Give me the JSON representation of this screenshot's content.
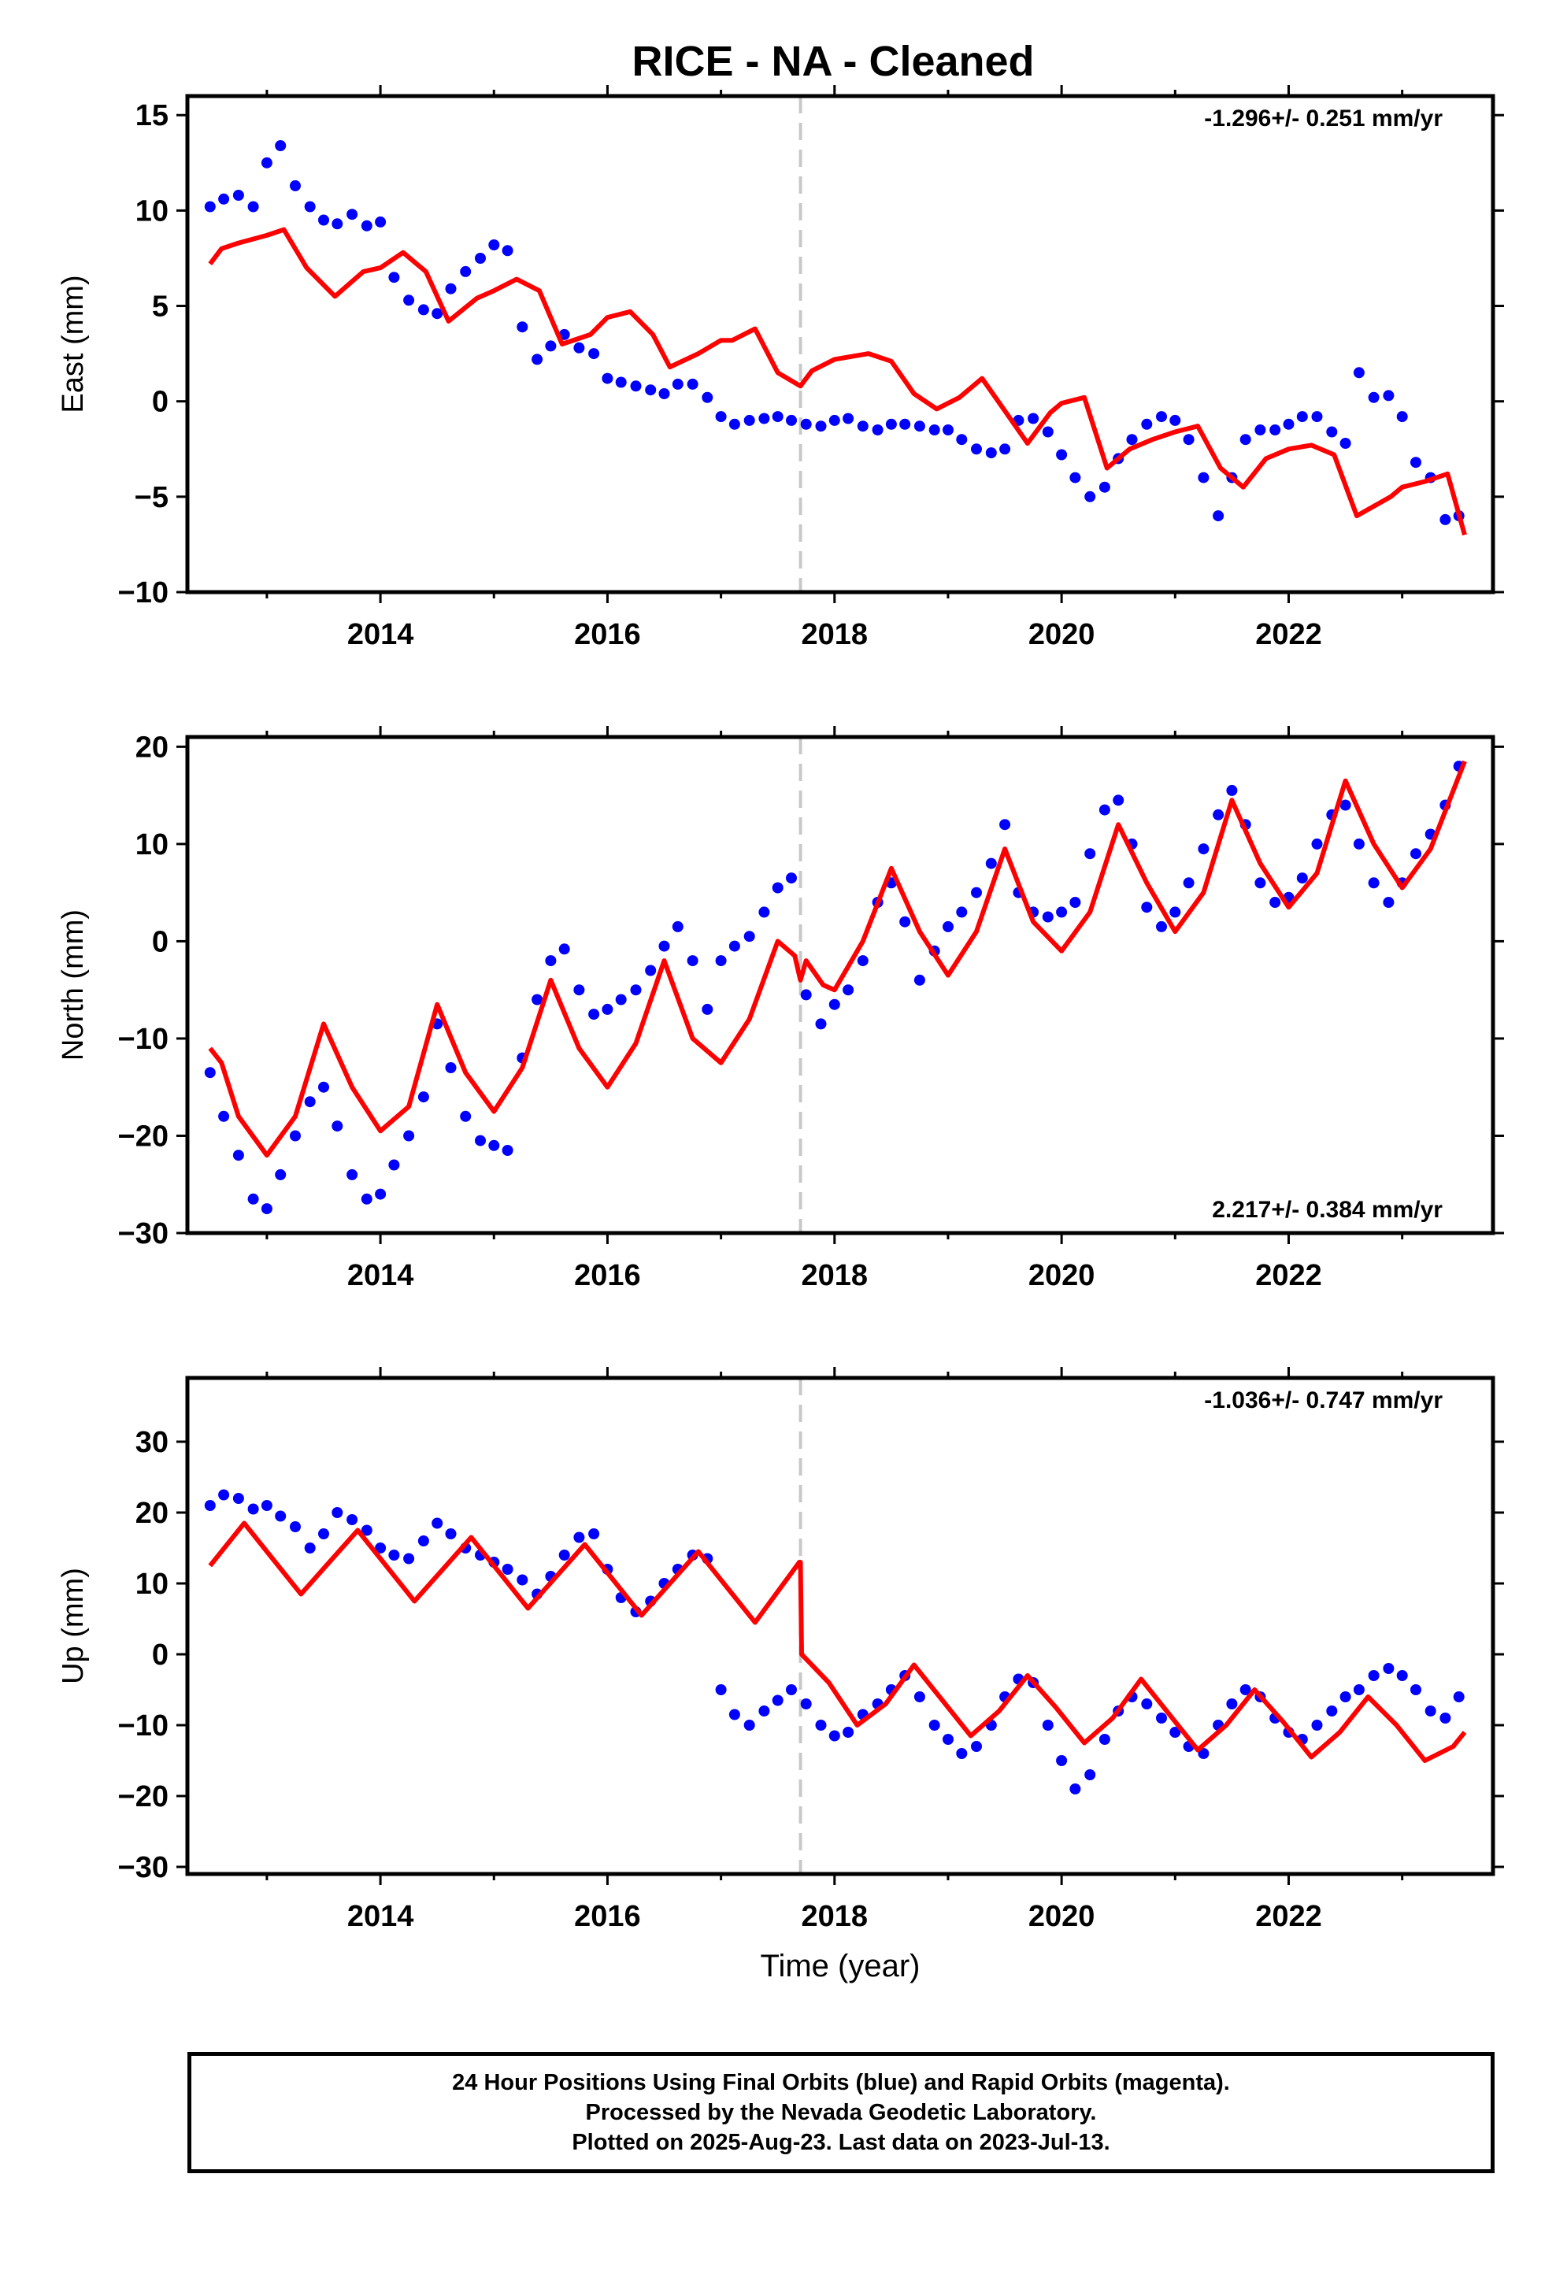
{
  "title": "RICE  - NA - Cleaned",
  "colors": {
    "data_points": "#0000ff",
    "model_line": "#ff0000",
    "offset_line": "#c8c8c8",
    "axes": "#000000",
    "background": "#ffffff"
  },
  "chart_data": [
    {
      "type": "scatter",
      "id": "east",
      "ylabel": "East (mm)",
      "xlabel": "",
      "rate_label": "-1.296+/- 0.251 mm/yr",
      "rate_label_position": "top-right",
      "xlim": [
        2012.3,
        2023.8
      ],
      "ylim": [
        -10,
        16
      ],
      "xticks": [
        2014,
        2016,
        2018,
        2020,
        2022
      ],
      "yticks": [
        -10,
        -5,
        0,
        5,
        10,
        15
      ],
      "offset_epoch": 2017.7,
      "data_series_name": "Final Orbits (blue)",
      "data_color": "#0000ff",
      "data_points": {
        "x": [
          2012.5,
          2012.62,
          2012.75,
          2012.88,
          2013.0,
          2013.12,
          2013.25,
          2013.38,
          2013.5,
          2013.62,
          2013.75,
          2013.88,
          2014.0,
          2014.12,
          2014.25,
          2014.38,
          2014.5,
          2014.62,
          2014.75,
          2014.88,
          2015.0,
          2015.12,
          2015.25,
          2015.38,
          2015.5,
          2015.62,
          2015.75,
          2015.88,
          2016.0,
          2016.12,
          2016.25,
          2016.38,
          2016.5,
          2016.62,
          2016.75,
          2016.88,
          2017.0,
          2017.12,
          2017.25,
          2017.38,
          2017.5,
          2017.62,
          2017.75,
          2017.88,
          2018.0,
          2018.12,
          2018.25,
          2018.38,
          2018.5,
          2018.62,
          2018.75,
          2018.88,
          2019.0,
          2019.12,
          2019.25,
          2019.38,
          2019.5,
          2019.62,
          2019.75,
          2019.88,
          2020.0,
          2020.12,
          2020.25,
          2020.38,
          2020.5,
          2020.62,
          2020.75,
          2020.88,
          2021.0,
          2021.12,
          2021.25,
          2021.38,
          2021.5,
          2021.62,
          2021.75,
          2021.88,
          2022.0,
          2022.12,
          2022.25,
          2022.38,
          2022.5,
          2022.62,
          2022.75,
          2022.88,
          2023.0,
          2023.12,
          2023.25,
          2023.38,
          2023.5
        ],
        "y": [
          10.2,
          10.6,
          10.8,
          10.2,
          12.5,
          13.4,
          11.3,
          10.2,
          9.5,
          9.3,
          9.8,
          9.2,
          9.4,
          6.5,
          5.3,
          4.8,
          4.6,
          5.9,
          6.8,
          7.5,
          8.2,
          7.9,
          3.9,
          2.2,
          2.9,
          3.5,
          2.8,
          2.5,
          1.2,
          1.0,
          0.8,
          0.6,
          0.4,
          0.9,
          0.9,
          0.2,
          -0.8,
          -1.2,
          -1.0,
          -0.9,
          -0.8,
          -1.0,
          -1.2,
          -1.3,
          -1.0,
          -0.9,
          -1.3,
          -1.5,
          -1.2,
          -1.2,
          -1.3,
          -1.5,
          -1.5,
          -2.0,
          -2.5,
          -2.7,
          -2.5,
          -1.0,
          -0.9,
          -1.6,
          -2.8,
          -4.0,
          -5.0,
          -4.5,
          -3.0,
          -2.0,
          -1.2,
          -0.8,
          -1.0,
          -2.0,
          -4.0,
          -6.0,
          -4.0,
          -2.0,
          -1.5,
          -1.5,
          -1.2,
          -0.8,
          -0.8,
          -1.6,
          -2.2,
          1.5,
          0.2,
          0.3,
          -0.8,
          -3.2,
          -4.0,
          -6.2,
          -6.0
        ]
      },
      "model_series_name": "Model fit (red)",
      "model_color": "#ff0000",
      "model_line": {
        "x": [
          2012.5,
          2012.6,
          2012.75,
          2013.0,
          2013.15,
          2013.35,
          2013.6,
          2013.85,
          2014.0,
          2014.2,
          2014.4,
          2014.6,
          2014.85,
          2015.0,
          2015.2,
          2015.4,
          2015.6,
          2015.85,
          2016.0,
          2016.2,
          2016.4,
          2016.55,
          2016.8,
          2017.0,
          2017.1,
          2017.3,
          2017.5,
          2017.7,
          2017.8,
          2018.0,
          2018.3,
          2018.5,
          2018.7,
          2018.9,
          2019.1,
          2019.3,
          2019.5,
          2019.7,
          2019.9,
          2020.0,
          2020.2,
          2020.4,
          2020.6,
          2020.8,
          2021.0,
          2021.2,
          2021.4,
          2021.6,
          2021.8,
          2022.0,
          2022.2,
          2022.4,
          2022.6,
          2022.9,
          2023.0,
          2023.2,
          2023.4,
          2023.55
        ],
        "y": [
          7.2,
          8.0,
          8.3,
          8.7,
          9.0,
          7.0,
          5.5,
          6.8,
          7.0,
          7.8,
          6.8,
          4.2,
          5.4,
          5.8,
          6.4,
          5.8,
          3.0,
          3.5,
          4.4,
          4.7,
          3.5,
          1.8,
          2.5,
          3.2,
          3.2,
          3.8,
          1.5,
          0.8,
          1.6,
          2.2,
          2.5,
          2.1,
          0.4,
          -0.4,
          0.2,
          1.2,
          -0.5,
          -2.2,
          -0.6,
          -0.1,
          0.2,
          -3.5,
          -2.5,
          -2.0,
          -1.6,
          -1.3,
          -3.5,
          -4.5,
          -3.0,
          -2.5,
          -2.3,
          -2.8,
          -6.0,
          -5.0,
          -4.5,
          -4.2,
          -3.8,
          -7.0
        ]
      }
    },
    {
      "type": "scatter",
      "id": "north",
      "ylabel": "North (mm)",
      "xlabel": "",
      "rate_label": "2.217+/- 0.384 mm/yr",
      "rate_label_position": "bottom-right",
      "xlim": [
        2012.3,
        2023.8
      ],
      "ylim": [
        -30,
        21
      ],
      "xticks": [
        2014,
        2016,
        2018,
        2020,
        2022
      ],
      "yticks": [
        -30,
        -20,
        -10,
        0,
        10,
        20
      ],
      "offset_epoch": 2017.7,
      "data_series_name": "Final Orbits (blue)",
      "data_color": "#0000ff",
      "data_points": {
        "x": [
          2012.5,
          2012.62,
          2012.75,
          2012.88,
          2013.0,
          2013.12,
          2013.25,
          2013.38,
          2013.5,
          2013.62,
          2013.75,
          2013.88,
          2014.0,
          2014.12,
          2014.25,
          2014.38,
          2014.5,
          2014.62,
          2014.75,
          2014.88,
          2015.0,
          2015.12,
          2015.25,
          2015.38,
          2015.5,
          2015.62,
          2015.75,
          2015.88,
          2016.0,
          2016.12,
          2016.25,
          2016.38,
          2016.5,
          2016.62,
          2016.75,
          2016.88,
          2017.0,
          2017.12,
          2017.25,
          2017.38,
          2017.5,
          2017.62,
          2017.75,
          2017.88,
          2018.0,
          2018.12,
          2018.25,
          2018.38,
          2018.5,
          2018.62,
          2018.75,
          2018.88,
          2019.0,
          2019.12,
          2019.25,
          2019.38,
          2019.5,
          2019.62,
          2019.75,
          2019.88,
          2020.0,
          2020.12,
          2020.25,
          2020.38,
          2020.5,
          2020.62,
          2020.75,
          2020.88,
          2021.0,
          2021.12,
          2021.25,
          2021.38,
          2021.5,
          2021.62,
          2021.75,
          2021.88,
          2022.0,
          2022.12,
          2022.25,
          2022.38,
          2022.5,
          2022.62,
          2022.75,
          2022.88,
          2023.0,
          2023.12,
          2023.25,
          2023.38,
          2023.5
        ],
        "y": [
          -13.5,
          -18.0,
          -22.0,
          -26.5,
          -27.5,
          -24.0,
          -20.0,
          -16.5,
          -15.0,
          -19.0,
          -24.0,
          -26.5,
          -26.0,
          -23.0,
          -20.0,
          -16.0,
          -8.5,
          -13.0,
          -18.0,
          -20.5,
          -21.0,
          -21.5,
          -12.0,
          -6.0,
          -2.0,
          -0.8,
          -5.0,
          -7.5,
          -7.0,
          -6.0,
          -5.0,
          -3.0,
          -0.5,
          1.5,
          -2.0,
          -7.0,
          -2.0,
          -0.5,
          0.5,
          3.0,
          5.5,
          6.5,
          -5.5,
          -8.5,
          -6.5,
          -5.0,
          -2.0,
          4.0,
          6.0,
          2.0,
          -4.0,
          -1.0,
          1.5,
          3.0,
          5.0,
          8.0,
          12.0,
          5.0,
          3.0,
          2.5,
          3.0,
          4.0,
          9.0,
          13.5,
          14.5,
          10.0,
          3.5,
          1.5,
          3.0,
          6.0,
          9.5,
          13.0,
          15.5,
          12.0,
          6.0,
          4.0,
          4.5,
          6.5,
          10.0,
          13.0,
          14.0,
          10.0,
          6.0,
          4.0,
          6.0,
          9.0,
          11.0,
          14.0,
          18.0
        ]
      },
      "model_series_name": "Model fit (red)",
      "model_color": "#ff0000",
      "model_line": {
        "x": [
          2012.5,
          2012.6,
          2012.75,
          2013.0,
          2013.25,
          2013.5,
          2013.75,
          2014.0,
          2014.25,
          2014.5,
          2014.75,
          2015.0,
          2015.25,
          2015.5,
          2015.75,
          2016.0,
          2016.25,
          2016.5,
          2016.75,
          2017.0,
          2017.25,
          2017.5,
          2017.65,
          2017.7,
          2017.75,
          2017.9,
          2018.0,
          2018.25,
          2018.5,
          2018.75,
          2019.0,
          2019.25,
          2019.5,
          2019.75,
          2020.0,
          2020.25,
          2020.5,
          2020.75,
          2021.0,
          2021.25,
          2021.5,
          2021.75,
          2022.0,
          2022.25,
          2022.5,
          2022.75,
          2023.0,
          2023.25,
          2023.55
        ],
        "y": [
          -11.0,
          -12.5,
          -18.0,
          -22.0,
          -18.0,
          -8.5,
          -15.0,
          -19.5,
          -17.0,
          -6.5,
          -13.5,
          -17.5,
          -13.0,
          -4.0,
          -11.0,
          -15.0,
          -10.5,
          -2.0,
          -10.0,
          -12.5,
          -8.0,
          0.0,
          -1.5,
          -4.0,
          -2.0,
          -4.5,
          -5.0,
          0.0,
          7.5,
          1.0,
          -3.5,
          1.0,
          9.5,
          2.0,
          -1.0,
          3.0,
          12.0,
          6.0,
          1.0,
          5.0,
          14.5,
          8.0,
          3.5,
          7.0,
          16.5,
          10.0,
          5.5,
          9.5,
          18.5
        ]
      }
    },
    {
      "type": "scatter",
      "id": "up",
      "ylabel": "Up (mm)",
      "xlabel": "Time (year)",
      "rate_label": "-1.036+/- 0.747 mm/yr",
      "rate_label_position": "top-right",
      "xlim": [
        2012.3,
        2023.8
      ],
      "ylim": [
        -31,
        39
      ],
      "xticks": [
        2014,
        2016,
        2018,
        2020,
        2022
      ],
      "yticks": [
        -30,
        -20,
        -10,
        0,
        10,
        20,
        30
      ],
      "offset_epoch": 2017.7,
      "data_series_name": "Final Orbits (blue)",
      "data_color": "#0000ff",
      "data_points": {
        "x": [
          2012.5,
          2012.62,
          2012.75,
          2012.88,
          2013.0,
          2013.12,
          2013.25,
          2013.38,
          2013.5,
          2013.62,
          2013.75,
          2013.88,
          2014.0,
          2014.12,
          2014.25,
          2014.38,
          2014.5,
          2014.62,
          2014.75,
          2014.88,
          2015.0,
          2015.12,
          2015.25,
          2015.38,
          2015.5,
          2015.62,
          2015.75,
          2015.88,
          2016.0,
          2016.12,
          2016.25,
          2016.38,
          2016.5,
          2016.62,
          2016.75,
          2016.88,
          2017.0,
          2017.12,
          2017.25,
          2017.38,
          2017.5,
          2017.62,
          2017.75,
          2017.88,
          2018.0,
          2018.12,
          2018.25,
          2018.38,
          2018.5,
          2018.62,
          2018.75,
          2018.88,
          2019.0,
          2019.12,
          2019.25,
          2019.38,
          2019.5,
          2019.62,
          2019.75,
          2019.88,
          2020.0,
          2020.12,
          2020.25,
          2020.38,
          2020.5,
          2020.62,
          2020.75,
          2020.88,
          2021.0,
          2021.12,
          2021.25,
          2021.38,
          2021.5,
          2021.62,
          2021.75,
          2021.88,
          2022.0,
          2022.12,
          2022.25,
          2022.38,
          2022.5,
          2022.62,
          2022.75,
          2022.88,
          2023.0,
          2023.12,
          2023.25,
          2023.38,
          2023.5
        ],
        "y": [
          21.0,
          22.5,
          22.0,
          20.5,
          21.0,
          19.5,
          18.0,
          15.0,
          17.0,
          20.0,
          19.0,
          17.5,
          15.0,
          14.0,
          13.5,
          16.0,
          18.5,
          17.0,
          15.0,
          14.0,
          13.0,
          12.0,
          10.5,
          8.5,
          11.0,
          14.0,
          16.5,
          17.0,
          12.0,
          8.0,
          6.0,
          7.5,
          10.0,
          12.0,
          14.0,
          13.5,
          -5.0,
          -8.5,
          -10.0,
          -8.0,
          -6.5,
          -5.0,
          -7.0,
          -10.0,
          -11.5,
          -11.0,
          -8.5,
          -7.0,
          -5.0,
          -3.0,
          -6.0,
          -10.0,
          -12.0,
          -14.0,
          -13.0,
          -10.0,
          -6.0,
          -3.5,
          -4.0,
          -10.0,
          -15.0,
          -19.0,
          -17.0,
          -12.0,
          -8.0,
          -6.0,
          -7.0,
          -9.0,
          -11.0,
          -13.0,
          -14.0,
          -10.0,
          -7.0,
          -5.0,
          -6.0,
          -9.0,
          -11.0,
          -12.0,
          -10.0,
          -8.0,
          -6.0,
          -5.0,
          -3.0,
          -2.0,
          -3.0,
          -5.0,
          -8.0,
          -9.0,
          -6.0
        ]
      },
      "model_series_name": "Model fit (red)",
      "model_color": "#ff0000",
      "model_line": {
        "x": [
          2012.5,
          2012.8,
          2013.05,
          2013.3,
          2013.55,
          2013.8,
          2014.05,
          2014.3,
          2014.55,
          2014.8,
          2015.05,
          2015.3,
          2015.55,
          2015.8,
          2016.05,
          2016.3,
          2016.55,
          2016.8,
          2017.05,
          2017.3,
          2017.69,
          2017.7,
          2017.71,
          2017.95,
          2018.2,
          2018.45,
          2018.7,
          2018.95,
          2019.2,
          2019.45,
          2019.7,
          2019.95,
          2020.2,
          2020.45,
          2020.7,
          2020.95,
          2021.2,
          2021.45,
          2021.7,
          2021.95,
          2022.2,
          2022.45,
          2022.7,
          2022.95,
          2023.2,
          2023.45,
          2023.55
        ],
        "y": [
          12.5,
          18.5,
          13.5,
          8.5,
          13.0,
          17.5,
          12.5,
          7.5,
          12.0,
          16.5,
          11.5,
          6.5,
          11.0,
          15.5,
          10.5,
          5.5,
          10.0,
          14.5,
          9.5,
          4.5,
          13.0,
          13.0,
          0.0,
          -4.0,
          -10.0,
          -7.0,
          -1.5,
          -6.5,
          -11.5,
          -8.0,
          -3.0,
          -7.5,
          -12.5,
          -9.0,
          -3.5,
          -8.5,
          -13.5,
          -10.0,
          -5.0,
          -9.5,
          -14.5,
          -11.0,
          -6.0,
          -10.0,
          -15.0,
          -13.0,
          -11.0
        ]
      }
    }
  ],
  "caption": {
    "line1": "24 Hour Positions Using Final Orbits (blue) and Rapid Orbits (magenta).",
    "line2": "Processed by the Nevada Geodetic Laboratory.",
    "line3": "Plotted on 2025-Aug-23. Last data on 2023-Jul-13."
  }
}
